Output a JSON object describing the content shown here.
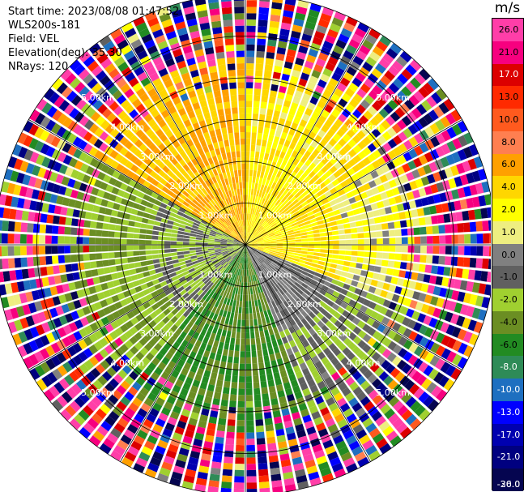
{
  "header": {
    "start_time": "Start time: 2023/08/08 01:47:52",
    "instrument": "WLS200s-181",
    "field": "Field: VEL",
    "elevation": "Elevation(deg): 35.30",
    "nrays": "NRays: 120"
  },
  "colorbar": {
    "unit": "m/s",
    "ticks": [
      "26.0",
      "21.0",
      "17.0",
      "13.0",
      "10.0",
      "8.0",
      "6.0",
      "4.0",
      "2.0",
      "1.0",
      "0.0",
      "-1.0",
      "-2.0",
      "-4.0",
      "-6.0",
      "-8.0",
      "-10.0",
      "-13.0",
      "-17.0",
      "-21.0",
      "-26.0",
      "-30.0"
    ],
    "colors": [
      "#ff3ea8",
      "#f7007f",
      "#dc0000",
      "#ff2a00",
      "#ff5a1e",
      "#ff7f50",
      "#ffa000",
      "#ffd600",
      "#ffff00",
      "#eeee80",
      "#808080",
      "#606060",
      "#a0d030",
      "#6b8e23",
      "#228b22",
      "#2e8b57",
      "#1e6fc0",
      "#0000ff",
      "#0000b0",
      "#000080",
      "#050550"
    ]
  },
  "chart_data": {
    "type": "heatmap",
    "projection": "polar-ppi",
    "n_rays": 120,
    "max_range_km": 6.0,
    "range_rings_km": [
      1.0,
      2.0,
      3.0,
      4.0,
      5.0,
      6.0
    ],
    "ring_labels": [
      "1.00km",
      "2.00km",
      "3.00km",
      "4.00km",
      "5.00km"
    ],
    "field": "VEL",
    "value_range": [
      -30.0,
      30.0
    ],
    "pattern": "positive velocities (yellow/orange) in the northern half, negative velocities (green/olive) in the southern half, noisy multicolour returns beyond ~4 km",
    "sector_velocity_bands": [
      {
        "azimuth_deg": [
          300,
          360
        ],
        "near": 4.0,
        "mid": 4.0
      },
      {
        "azimuth_deg": [
          0,
          60
        ],
        "near": 2.0,
        "mid": 2.0
      },
      {
        "azimuth_deg": [
          60,
          110
        ],
        "near": 2.0,
        "mid": 1.0
      },
      {
        "azimuth_deg": [
          110,
          160
        ],
        "near": -1.0,
        "mid": -2.0
      },
      {
        "azimuth_deg": [
          160,
          220
        ],
        "near": -6.0,
        "mid": -6.0
      },
      {
        "azimuth_deg": [
          220,
          300
        ],
        "near": -2.0,
        "mid": -4.0
      }
    ]
  }
}
